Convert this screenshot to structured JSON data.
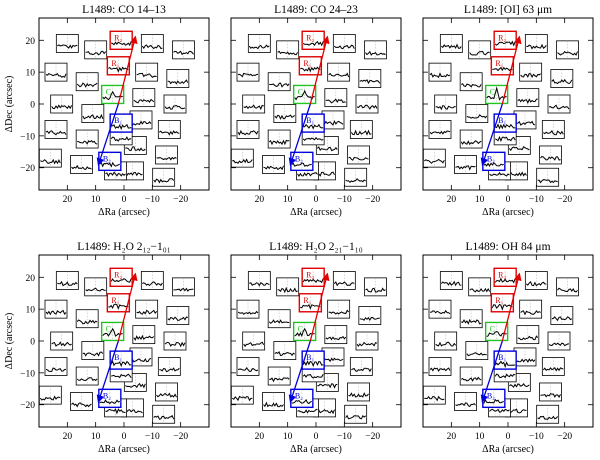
{
  "chart_data": [
    {
      "type": "line",
      "title": "L1489: CO 14–13",
      "xlabel": "ΔRa (arcsec)",
      "ylabel": "ΔDec (arcsec)",
      "xlim": [
        30,
        -30
      ],
      "ylim": [
        -27,
        27
      ],
      "xticks": [
        20,
        10,
        0,
        -10,
        -20
      ],
      "yticks": [
        20,
        10,
        0,
        -10,
        -20
      ],
      "tick_labels_x": [
        "20",
        "10",
        "0",
        "−10",
        "−20"
      ],
      "tick_labels_y": [
        "20",
        "10",
        "0",
        "−10",
        "−20"
      ],
      "region_labels": [
        "R₂",
        "R₁",
        "C",
        "B₁",
        "B₂"
      ],
      "spectrum_peak": 0.7
    },
    {
      "type": "line",
      "title": "L1489: CO 24–23",
      "xlabel": "ΔRa (arcsec)",
      "ylabel": "",
      "xlim": [
        30,
        -30
      ],
      "ylim": [
        -27,
        27
      ],
      "xticks": [
        20,
        10,
        0,
        -10,
        -20
      ],
      "yticks": [
        20,
        10,
        0,
        -10,
        -20
      ],
      "tick_labels_x": [
        "20",
        "10",
        "0",
        "−10",
        "−20"
      ],
      "tick_labels_y": [
        "",
        "",
        "",
        "",
        ""
      ],
      "region_labels": [
        "R₂",
        "R₁",
        "C",
        "B₁",
        "B₂"
      ],
      "spectrum_peak": 0.75
    },
    {
      "type": "line",
      "title": "L1489: [OI] 63 μm",
      "xlabel": "ΔRa (arcsec)",
      "ylabel": "",
      "xlim": [
        30,
        -30
      ],
      "ylim": [
        -27,
        27
      ],
      "xticks": [
        20,
        10,
        0,
        -10,
        -20
      ],
      "yticks": [
        20,
        10,
        0,
        -10,
        -20
      ],
      "tick_labels_x": [
        "20",
        "10",
        "0",
        "−10",
        "−20"
      ],
      "tick_labels_y": [
        "",
        "",
        "",
        "",
        ""
      ],
      "region_labels": [
        "R₂",
        "R₁",
        "C",
        "B₁",
        "B₂"
      ],
      "spectrum_peak": 0.9
    },
    {
      "type": "line",
      "title": "L1489: H₂O 2₁₂−1₀₁",
      "xlabel": "ΔRa (arcsec)",
      "ylabel": "ΔDec (arcsec)",
      "xlim": [
        30,
        -30
      ],
      "ylim": [
        -27,
        27
      ],
      "xticks": [
        20,
        10,
        0,
        -10,
        -20
      ],
      "yticks": [
        20,
        10,
        0,
        -10,
        -20
      ],
      "tick_labels_x": [
        "20",
        "10",
        "0",
        "−10",
        "−20"
      ],
      "tick_labels_y": [
        "20",
        "10",
        "0",
        "−10",
        "−20"
      ],
      "region_labels": [
        "R₂",
        "R₁",
        "C",
        "B₁",
        "B₂"
      ],
      "spectrum_peak": 0.7
    },
    {
      "type": "line",
      "title": "L1489: H₂O 2₂₁−1₁₀",
      "xlabel": "ΔRa (arcsec)",
      "ylabel": "",
      "xlim": [
        30,
        -30
      ],
      "ylim": [
        -27,
        27
      ],
      "xticks": [
        20,
        10,
        0,
        -10,
        -20
      ],
      "yticks": [
        20,
        10,
        0,
        -10,
        -20
      ],
      "tick_labels_x": [
        "20",
        "10",
        "0",
        "−10",
        "−20"
      ],
      "tick_labels_y": [
        "",
        "",
        "",
        "",
        ""
      ],
      "region_labels": [
        "R₂",
        "R₁",
        "C",
        "B₁",
        "B₂"
      ],
      "spectrum_peak": 0.7
    },
    {
      "type": "line",
      "title": "L1489: OH 84 μm",
      "xlabel": "ΔRa (arcsec)",
      "ylabel": "",
      "xlim": [
        30,
        -30
      ],
      "ylim": [
        -27,
        27
      ],
      "xticks": [
        20,
        10,
        0,
        -10,
        -20
      ],
      "yticks": [
        20,
        10,
        0,
        -10,
        -20
      ],
      "tick_labels_x": [
        "20",
        "10",
        "0",
        "−10",
        "−20"
      ],
      "tick_labels_y": [
        "",
        "",
        "",
        "",
        ""
      ],
      "region_labels": [
        "R₂",
        "R₁",
        "C",
        "B₁",
        "B₂"
      ],
      "spectrum_peak": 0.55
    }
  ],
  "spaxels": [
    {
      "ra": 20,
      "dec": 19
    },
    {
      "ra": 10,
      "dec": 17
    },
    {
      "ra": 24,
      "dec": 10
    },
    {
      "ra": 13,
      "dec": 7
    },
    {
      "ra": 22,
      "dec": 0
    },
    {
      "ra": 11,
      "dec": -3
    },
    {
      "ra": 24,
      "dec": -8
    },
    {
      "ra": 13,
      "dec": -11
    },
    {
      "ra": 26,
      "dec": -17
    },
    {
      "ra": 15,
      "dec": -19
    },
    {
      "ra": -10,
      "dec": 19
    },
    {
      "ra": -21,
      "dec": 17
    },
    {
      "ra": -8,
      "dec": 10
    },
    {
      "ra": -19,
      "dec": 8
    },
    {
      "ra": -7,
      "dec": 2
    },
    {
      "ra": -18,
      "dec": 0
    },
    {
      "ra": -6,
      "dec": -5
    },
    {
      "ra": -16,
      "dec": -8
    },
    {
      "ra": -4,
      "dec": -13
    },
    {
      "ra": -15,
      "dec": -16
    },
    {
      "ra": -3,
      "dec": -21
    },
    {
      "ra": -14,
      "dec": -23
    },
    {
      "ra": 1,
      "dec": -10
    },
    {
      "ra": 3,
      "dec": -21
    }
  ],
  "regions": [
    {
      "id": "R2",
      "ra": 1,
      "dec": 20,
      "color": "#e00000"
    },
    {
      "id": "R1",
      "ra": 2,
      "dec": 12,
      "color": "#e00000"
    },
    {
      "id": "C",
      "ra": 4,
      "dec": 3,
      "color": "#22c422"
    },
    {
      "id": "B1",
      "ra": 1,
      "dec": -6,
      "color": "#0000dd"
    },
    {
      "id": "B2",
      "ra": 5,
      "dec": -18,
      "color": "#0000dd"
    }
  ],
  "arrows": {
    "red_color": "#e00000",
    "blue_color": "#0000dd"
  }
}
